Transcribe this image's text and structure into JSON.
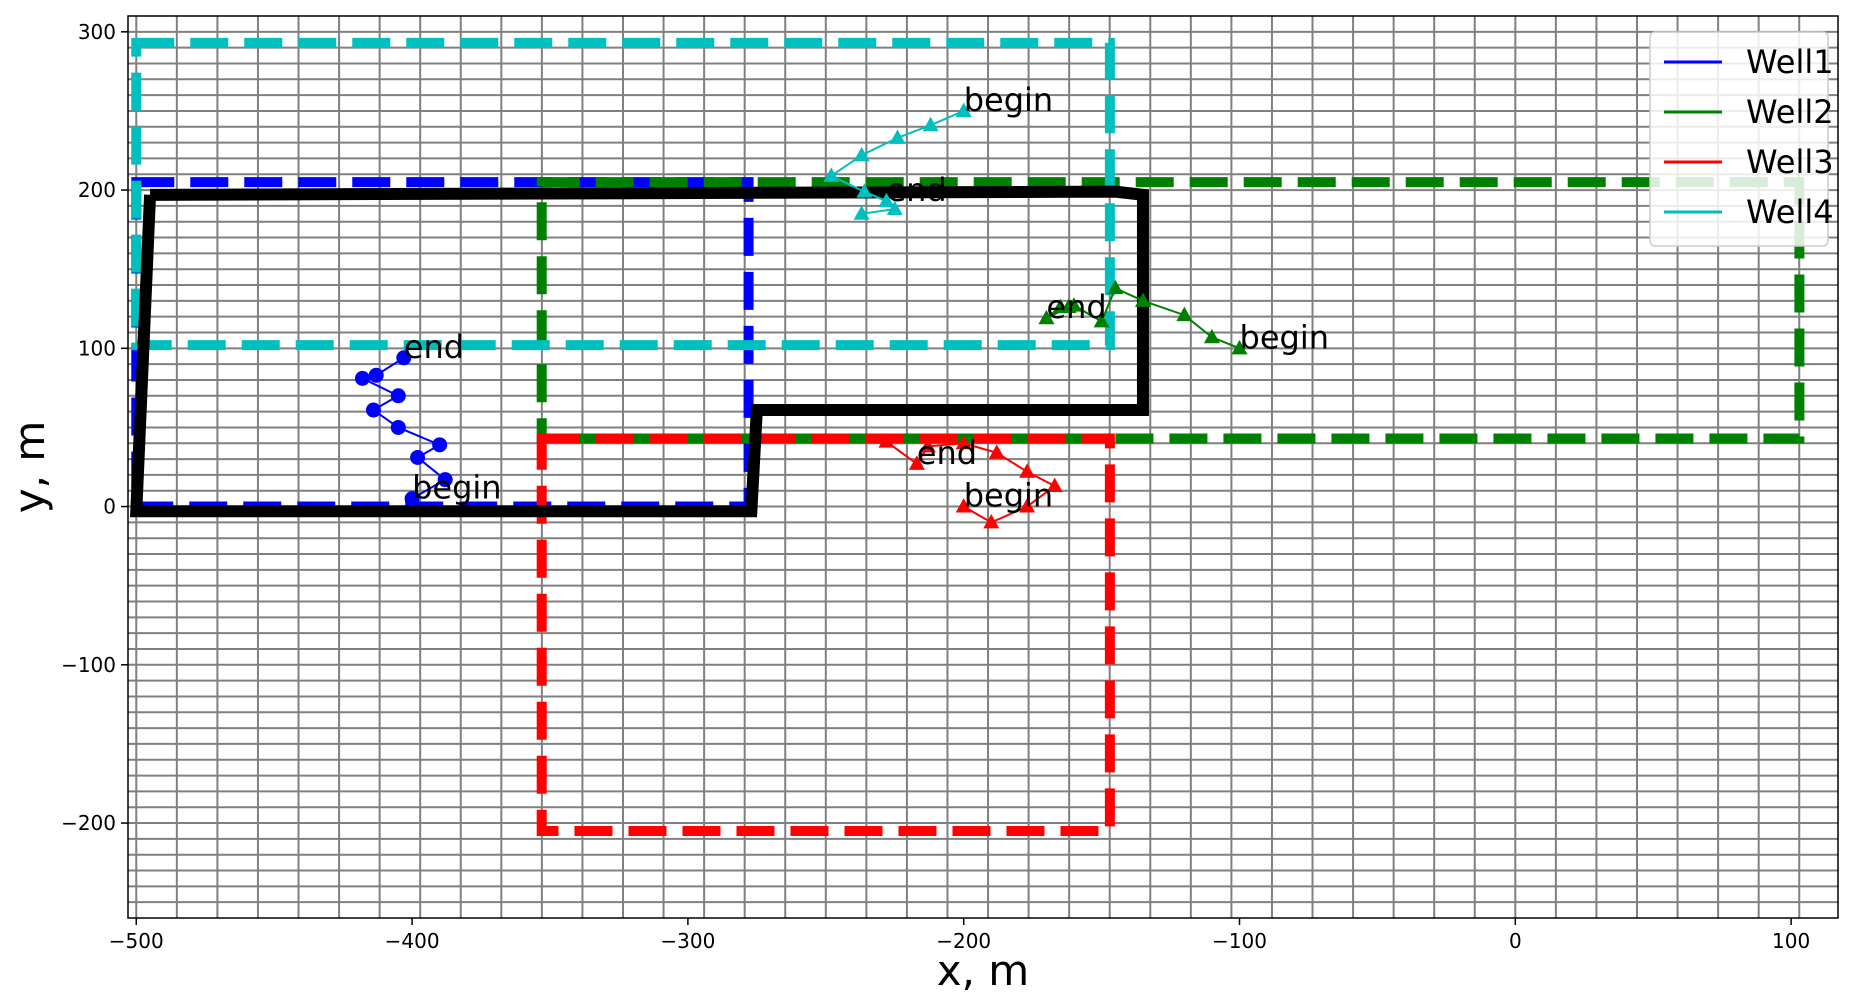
{
  "chart_data": {
    "type": "line",
    "title": "",
    "xlabel": "x, m",
    "ylabel": "y, m",
    "xlim": [
      -503,
      117
    ],
    "ylim": [
      -260,
      310
    ],
    "xticks": [
      -500,
      -400,
      -300,
      -200,
      -100,
      0,
      100
    ],
    "yticks": [
      -200,
      -100,
      0,
      100,
      200,
      300
    ],
    "xtick_labels": [
      "−500",
      "−400",
      "−300",
      "−200",
      "−100",
      "0",
      "100"
    ],
    "ytick_labels": [
      "−200",
      "−100",
      "0",
      "100",
      "200",
      "300"
    ],
    "grid": {
      "x_start": -500,
      "x_step": 14.706,
      "x_count": 42,
      "y_start": -250,
      "y_step": 10,
      "y_count": 56,
      "color": "#808080"
    },
    "legend": {
      "position": "top-right",
      "entries": [
        {
          "label": "Well1",
          "color": "#0000ff"
        },
        {
          "label": "Well2",
          "color": "#008000"
        },
        {
          "label": "Well3",
          "color": "#ff0000"
        },
        {
          "label": "Well4",
          "color": "#00bfbf"
        }
      ]
    },
    "boundary": {
      "color": "#000000",
      "points": [
        [
          -495,
          197
        ],
        [
          -145,
          199
        ],
        [
          -135,
          197
        ],
        [
          -135,
          61
        ],
        [
          -275,
          61
        ],
        [
          -277,
          -3
        ],
        [
          -500,
          -3
        ],
        [
          -495,
          197
        ]
      ]
    },
    "rectangles": [
      {
        "well": "Well1",
        "color": "#0000ff",
        "x0": -500,
        "y0": 0,
        "x1": -278,
        "y1": 205
      },
      {
        "well": "Well2",
        "color": "#008000",
        "x0": -353,
        "y0": 43,
        "x1": 103,
        "y1": 205
      },
      {
        "well": "Well3",
        "color": "#ff0000",
        "x0": -353,
        "y0": -205,
        "x1": -147,
        "y1": 43
      },
      {
        "well": "Well4",
        "color": "#00bfbf",
        "x0": -500,
        "y0": 102,
        "x1": -147,
        "y1": 293
      }
    ],
    "series": [
      {
        "name": "Well1",
        "color": "#0000ff",
        "marker": "circle",
        "x": [
          -400,
          -388,
          -398,
          -390,
          -405,
          -414,
          -405,
          -418,
          -413,
          -403
        ],
        "y": [
          5,
          17,
          31,
          39,
          50,
          61,
          70,
          81,
          83,
          94
        ]
      },
      {
        "name": "Well2",
        "color": "#008000",
        "marker": "triangle",
        "x": [
          -100,
          -110,
          -120,
          -135,
          -145,
          -150,
          -160,
          -165,
          -170,
          -162
        ],
        "y": [
          100,
          107,
          121,
          130,
          138,
          117,
          127,
          126,
          119,
          126
        ]
      },
      {
        "name": "Well3",
        "color": "#ff0000",
        "marker": "triangle",
        "x": [
          -200,
          -190,
          -177,
          -167,
          -177,
          -188,
          -200,
          -213,
          -217,
          -228
        ],
        "y": [
          0,
          -10,
          0,
          13,
          22,
          34,
          40,
          38,
          27,
          41
        ]
      },
      {
        "name": "Well4",
        "color": "#00bfbf",
        "marker": "triangle",
        "x": [
          -200,
          -212,
          -224,
          -237,
          -248,
          -236,
          -228,
          -225,
          -237
        ],
        "y": [
          250,
          241,
          233,
          222,
          209,
          199,
          193,
          188,
          185
        ]
      }
    ],
    "annotations": [
      {
        "text": "begin",
        "x": -400,
        "y": 5
      },
      {
        "text": "end",
        "x": -403,
        "y": 94
      },
      {
        "text": "begin",
        "x": -100,
        "y": 100
      },
      {
        "text": "end",
        "x": -170,
        "y": 119
      },
      {
        "text": "begin",
        "x": -200,
        "y": 0
      },
      {
        "text": "end",
        "x": -217,
        "y": 27
      },
      {
        "text": "begin",
        "x": -200,
        "y": 250
      },
      {
        "text": "end",
        "x": -228,
        "y": 193
      }
    ]
  }
}
